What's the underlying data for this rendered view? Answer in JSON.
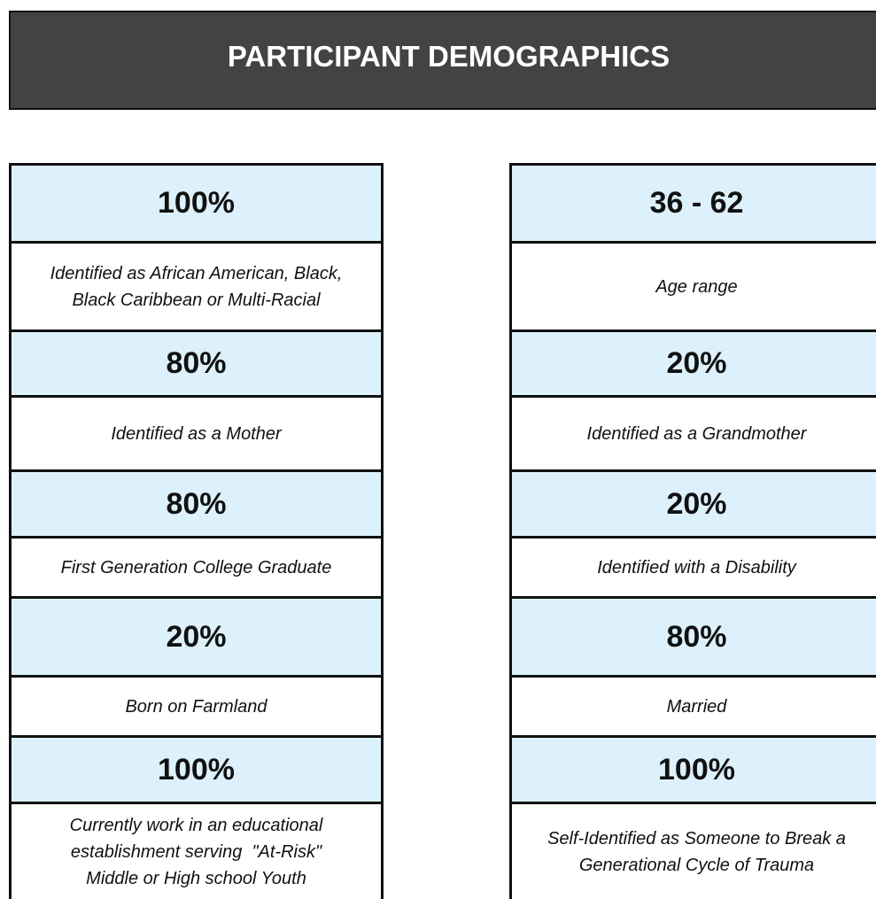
{
  "title": "PARTICIPANT DEMOGRAPHICS",
  "left": [
    {
      "value": "100%",
      "label": [
        "Identified as African American, Black,",
        "Black Caribbean or Multi-Racial"
      ]
    },
    {
      "value": "80%",
      "label": [
        "Identified as a Mother"
      ]
    },
    {
      "value": "80%",
      "label": [
        "First Generation College Graduate"
      ]
    },
    {
      "value": "20%",
      "label": [
        "Born on Farmland"
      ]
    },
    {
      "value": "100%",
      "label": [
        "Currently work in an educational",
        "establishment serving  \"At-Risk\"",
        "Middle or High school Youth"
      ]
    }
  ],
  "right": [
    {
      "value": "36 - 62",
      "label": [
        "Age range"
      ]
    },
    {
      "value": "20%",
      "label": [
        "Identified as a Grandmother"
      ]
    },
    {
      "value": "20%",
      "label": [
        "Identified with a Disability"
      ]
    },
    {
      "value": "80%",
      "label": [
        "Married"
      ]
    },
    {
      "value": "100%",
      "label": [
        "Self-Identified as Someone to Break a",
        "Generational Cycle of Trauma"
      ]
    }
  ]
}
